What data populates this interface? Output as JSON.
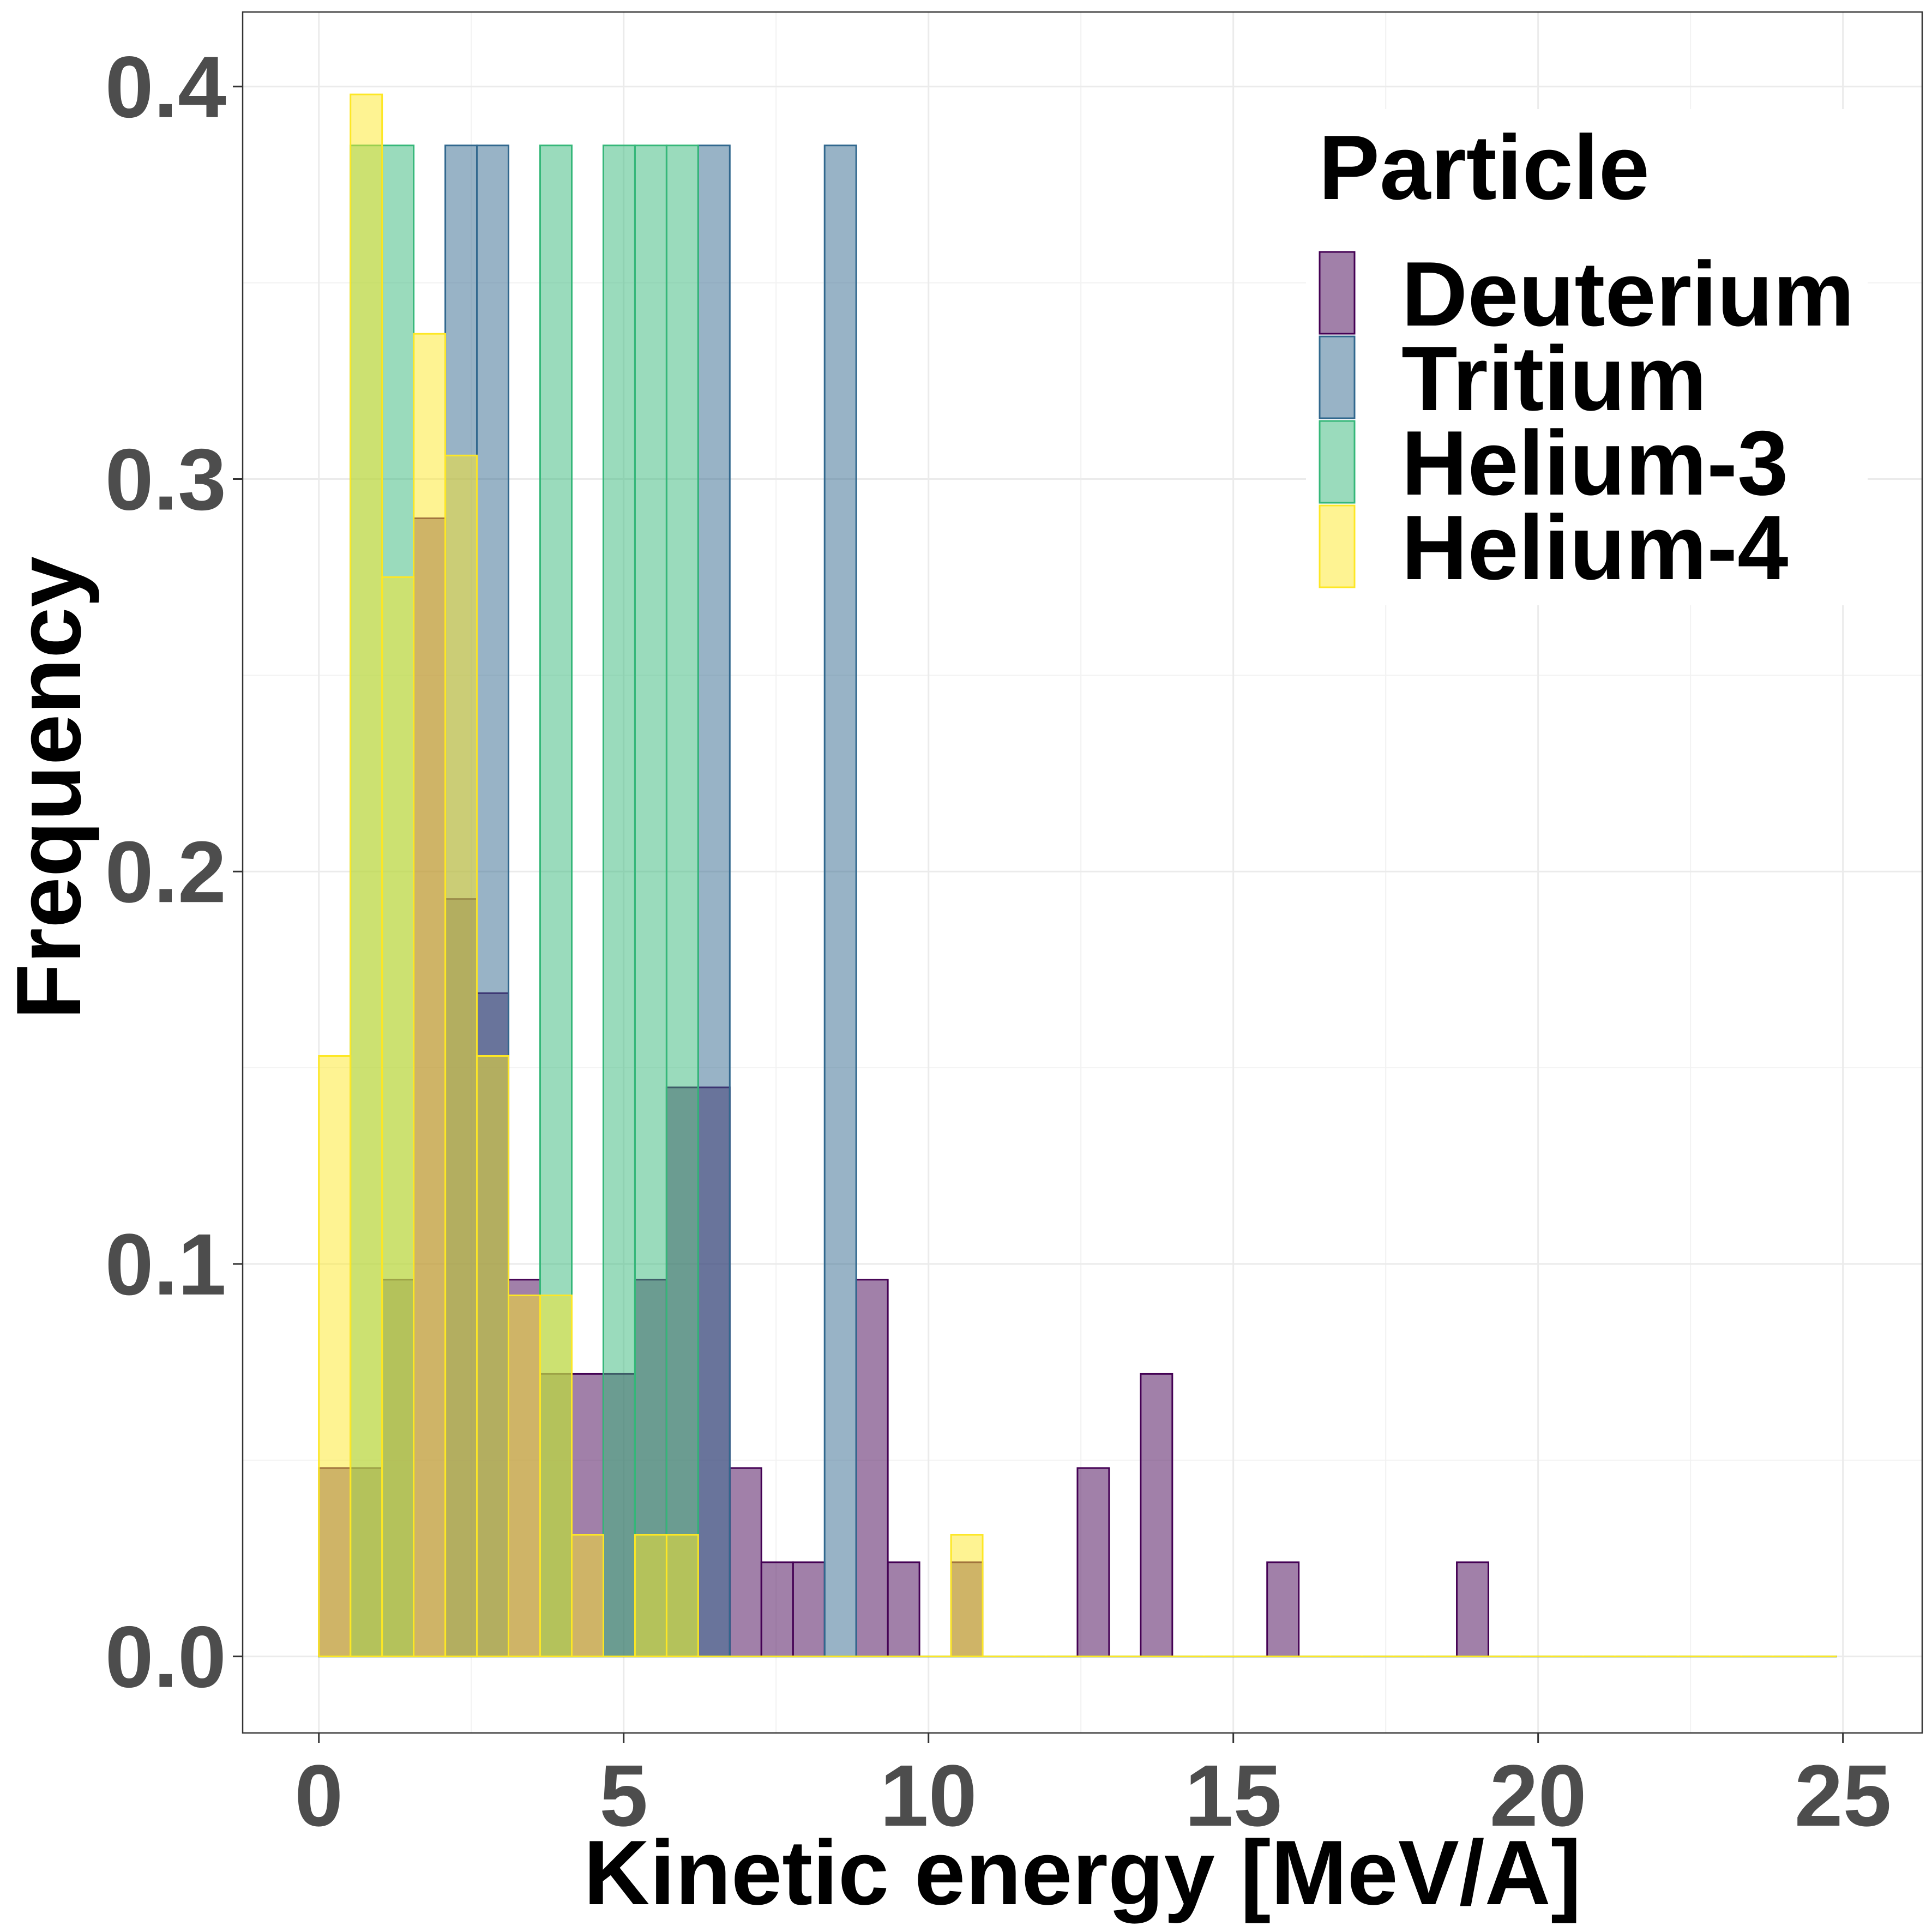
{
  "chart_data": {
    "type": "bar",
    "subtype": "overlapping-histogram",
    "xlabel": "Kinetic energy [MeV/A]",
    "ylabel": "Frequency",
    "xlim": [
      -1.25,
      26.3
    ],
    "ylim": [
      -0.0195,
      0.419
    ],
    "x_ticks": [
      0,
      5,
      10,
      15,
      20,
      25
    ],
    "y_ticks": [
      0.0,
      0.1,
      0.2,
      0.3,
      0.4
    ],
    "x_tick_labels": [
      "0",
      "5",
      "10",
      "15",
      "20",
      "25"
    ],
    "y_tick_labels": [
      "0.0",
      "0.1",
      "0.2",
      "0.3",
      "0.4"
    ],
    "bin_start": 0,
    "bin_width": 0.5185,
    "n_bins": 48,
    "grid": true,
    "legend": {
      "title": "Particle",
      "position": "top-right"
    },
    "series": [
      {
        "name": "Deuterium",
        "fill": "#440154",
        "line": "#440154",
        "values": [
          0.048,
          0.048,
          0.096,
          0.29,
          0.193,
          0.169,
          0.096,
          0.072,
          0.072,
          0.072,
          0.096,
          0.145,
          0.145,
          0.048,
          0.024,
          0.024,
          0,
          0.096,
          0.024,
          0,
          0.024,
          0,
          0,
          0,
          0.048,
          0,
          0.072,
          0,
          0,
          0,
          0.024,
          0,
          0,
          0,
          0,
          0,
          0.024,
          0,
          0,
          0,
          0,
          0,
          0,
          0,
          0,
          0,
          0,
          0
        ]
      },
      {
        "name": "Tritium",
        "fill": "#31688E",
        "line": "#31688E",
        "values": [
          0,
          0,
          0,
          0,
          0.385,
          0.385,
          0,
          0,
          0,
          0,
          0,
          0,
          0.385,
          0,
          0,
          0,
          0.385,
          0,
          0,
          0,
          0,
          0,
          0,
          0,
          0,
          0,
          0,
          0,
          0,
          0,
          0,
          0,
          0,
          0,
          0,
          0,
          0,
          0,
          0,
          0,
          0,
          0,
          0,
          0,
          0,
          0,
          0,
          0
        ]
      },
      {
        "name": "Helium-3",
        "fill": "#35B779",
        "line": "#35B779",
        "values": [
          0,
          0.385,
          0.385,
          0,
          0,
          0,
          0,
          0.385,
          0,
          0.385,
          0.385,
          0.385,
          0,
          0,
          0,
          0,
          0,
          0,
          0,
          0,
          0,
          0,
          0,
          0,
          0,
          0,
          0,
          0,
          0,
          0,
          0,
          0,
          0,
          0,
          0,
          0,
          0,
          0,
          0,
          0,
          0,
          0,
          0,
          0,
          0,
          0,
          0,
          0
        ]
      },
      {
        "name": "Helium-4",
        "fill": "#FDE725",
        "line": "#FDE725",
        "values": [
          0.153,
          0.398,
          0.275,
          0.337,
          0.306,
          0.153,
          0.092,
          0.092,
          0.031,
          0,
          0.031,
          0.031,
          0,
          0,
          0,
          0,
          0,
          0,
          0,
          0,
          0.031,
          0,
          0,
          0,
          0,
          0,
          0,
          0,
          0,
          0,
          0,
          0,
          0,
          0,
          0,
          0,
          0,
          0,
          0,
          0,
          0,
          0,
          0,
          0,
          0,
          0,
          0,
          0
        ]
      }
    ]
  }
}
